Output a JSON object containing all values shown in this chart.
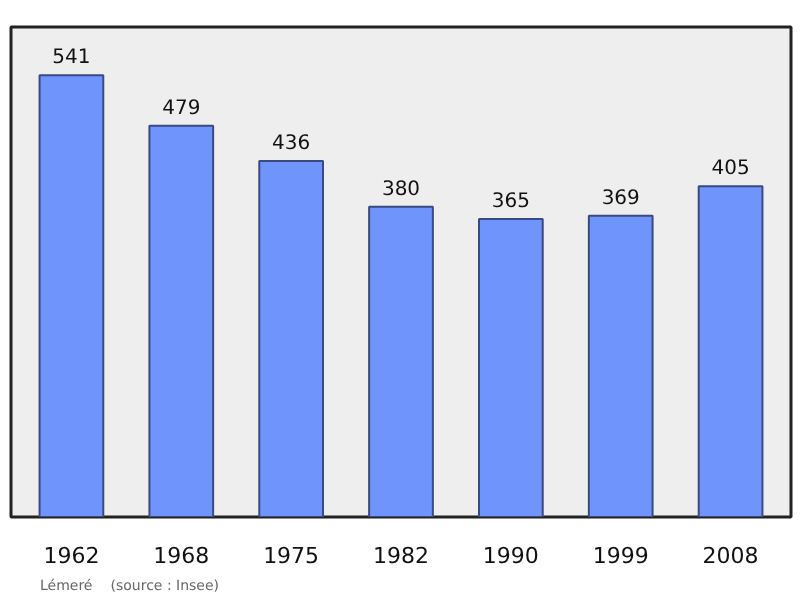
{
  "chart_data": {
    "type": "bar",
    "categories": [
      "1962",
      "1968",
      "1975",
      "1982",
      "1990",
      "1999",
      "2008"
    ],
    "values": [
      541,
      479,
      436,
      380,
      365,
      369,
      405
    ],
    "color": "#6f94fb",
    "ylim": [
      0,
      600
    ],
    "data_labels": true,
    "tick_labels": "x",
    "grid": false,
    "annotations": [
      "Lémeré",
      "(source : Insee)"
    ]
  }
}
